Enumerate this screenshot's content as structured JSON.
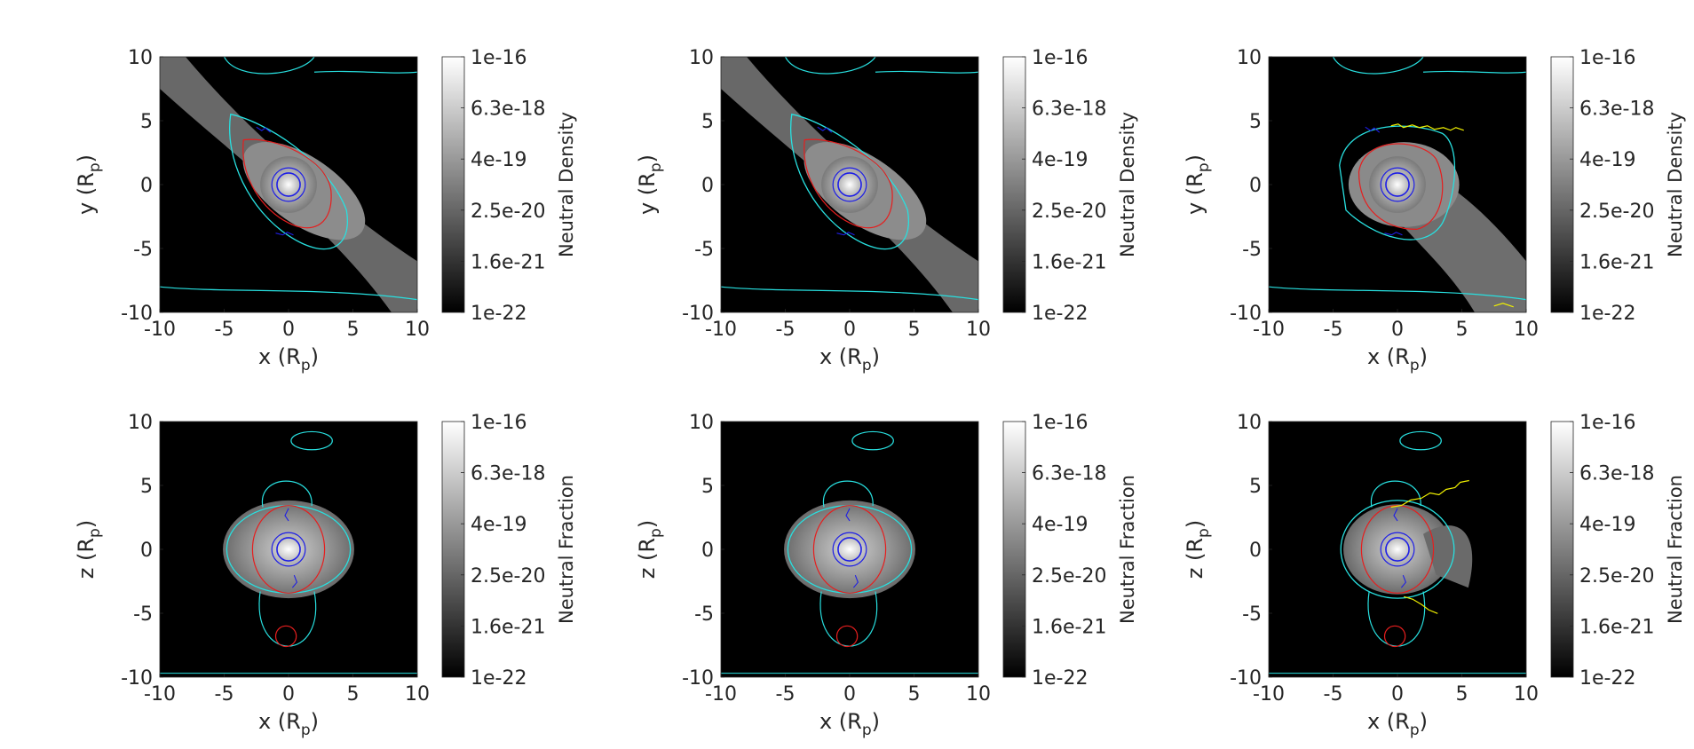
{
  "figure": {
    "panels": [
      {
        "ylabel": "y (R",
        "ysub": "p",
        "ylabel_end": ")",
        "xlabel": "x (R",
        "xsub": "p",
        "xlabel_end": ")",
        "cbar_label": "Neutral Density",
        "contour_colors": [
          "#1e1ee6",
          "#e61e1e",
          "#28e0e0"
        ]
      },
      {
        "ylabel": "y (R",
        "ysub": "p",
        "ylabel_end": ")",
        "xlabel": "x (R",
        "xsub": "p",
        "xlabel_end": ")",
        "cbar_label": "Neutral Density",
        "contour_colors": [
          "#1e1ee6",
          "#e61e1e",
          "#28e0e0"
        ]
      },
      {
        "ylabel": "y (R",
        "ysub": "p",
        "ylabel_end": ")",
        "xlabel": "x (R",
        "xsub": "p",
        "xlabel_end": ")",
        "cbar_label": "Neutral Density",
        "contour_colors": [
          "#1e1ee6",
          "#e61e1e",
          "#28e0e0",
          "#f0f000"
        ]
      },
      {
        "ylabel": "z (R",
        "ysub": "p",
        "ylabel_end": ")",
        "xlabel": "x (R",
        "xsub": "p",
        "xlabel_end": ")",
        "cbar_label": "Neutral Fraction",
        "contour_colors": [
          "#1e1ee6",
          "#e61e1e",
          "#28e0e0"
        ]
      },
      {
        "ylabel": "z (R",
        "ysub": "p",
        "ylabel_end": ")",
        "xlabel": "x (R",
        "xsub": "p",
        "xlabel_end": ")",
        "cbar_label": "Neutral Fraction",
        "contour_colors": [
          "#1e1ee6",
          "#e61e1e",
          "#28e0e0"
        ]
      },
      {
        "ylabel": "z (R",
        "ysub": "p",
        "ylabel_end": ")",
        "xlabel": "x (R",
        "xsub": "p",
        "xlabel_end": ")",
        "cbar_label": "Neutral Fraction",
        "contour_colors": [
          "#1e1ee6",
          "#e61e1e",
          "#28e0e0",
          "#f0f000"
        ]
      }
    ]
  },
  "chart_data": [
    {
      "type": "heatmap",
      "panel": 1,
      "xlabel": "x (Rp)",
      "ylabel": "y (Rp)",
      "xlim": [
        -10,
        10
      ],
      "ylim": [
        -10,
        10
      ],
      "xticks": [
        "-10",
        "-5",
        "0",
        "5",
        "10"
      ],
      "yticks": [
        "10",
        "5",
        "0",
        "-5",
        "-10"
      ],
      "colorbar": {
        "label": "Neutral Density",
        "scale": "log",
        "range": [
          1e-22,
          1e-16
        ],
        "ticks": [
          "1e-16",
          "6.3e-18",
          "4e-19",
          "2.5e-20",
          "1.6e-21",
          "1e-22"
        ]
      },
      "colormap": "gray"
    },
    {
      "type": "heatmap",
      "panel": 2,
      "xlabel": "x (Rp)",
      "ylabel": "y (Rp)",
      "xlim": [
        -10,
        10
      ],
      "ylim": [
        -10,
        10
      ],
      "xticks": [
        "-10",
        "-5",
        "0",
        "5",
        "10"
      ],
      "yticks": [
        "10",
        "5",
        "0",
        "-5",
        "-10"
      ],
      "colorbar": {
        "label": "Neutral Density",
        "scale": "log",
        "range": [
          1e-22,
          1e-16
        ],
        "ticks": [
          "1e-16",
          "6.3e-18",
          "4e-19",
          "2.5e-20",
          "1.6e-21",
          "1e-22"
        ]
      },
      "colormap": "gray"
    },
    {
      "type": "heatmap",
      "panel": 3,
      "xlabel": "x (Rp)",
      "ylabel": "y (Rp)",
      "xlim": [
        -10,
        10
      ],
      "ylim": [
        -10,
        10
      ],
      "xticks": [
        "-10",
        "-5",
        "0",
        "5",
        "10"
      ],
      "yticks": [
        "10",
        "5",
        "0",
        "-5",
        "-10"
      ],
      "colorbar": {
        "label": "Neutral Density",
        "scale": "log",
        "range": [
          1e-22,
          1e-16
        ],
        "ticks": [
          "1e-16",
          "6.3e-18",
          "4e-19",
          "2.5e-20",
          "1.6e-21",
          "1e-22"
        ]
      },
      "colormap": "gray"
    },
    {
      "type": "heatmap",
      "panel": 4,
      "xlabel": "x (Rp)",
      "ylabel": "z (Rp)",
      "xlim": [
        -10,
        10
      ],
      "ylim": [
        -10,
        10
      ],
      "xticks": [
        "-10",
        "-5",
        "0",
        "5",
        "10"
      ],
      "yticks": [
        "10",
        "5",
        "0",
        "-5",
        "-10"
      ],
      "colorbar": {
        "label": "Neutral Fraction",
        "scale": "log",
        "range": [
          1e-22,
          1e-16
        ],
        "ticks": [
          "1e-16",
          "6.3e-18",
          "4e-19",
          "2.5e-20",
          "1.6e-21",
          "1e-22"
        ]
      },
      "colormap": "gray"
    },
    {
      "type": "heatmap",
      "panel": 5,
      "xlabel": "x (Rp)",
      "ylabel": "z (Rp)",
      "xlim": [
        -10,
        10
      ],
      "ylim": [
        -10,
        10
      ],
      "xticks": [
        "-10",
        "-5",
        "0",
        "5",
        "10"
      ],
      "yticks": [
        "10",
        "5",
        "0",
        "-5",
        "-10"
      ],
      "colorbar": {
        "label": "Neutral Fraction",
        "scale": "log",
        "range": [
          1e-22,
          1e-16
        ],
        "ticks": [
          "1e-16",
          "6.3e-18",
          "4e-19",
          "2.5e-20",
          "1.6e-21",
          "1e-22"
        ]
      },
      "colormap": "gray"
    },
    {
      "type": "heatmap",
      "panel": 6,
      "xlabel": "x (Rp)",
      "ylabel": "z (Rp)",
      "xlim": [
        -10,
        10
      ],
      "ylim": [
        -10,
        10
      ],
      "xticks": [
        "-10",
        "-5",
        "0",
        "5",
        "10"
      ],
      "yticks": [
        "10",
        "5",
        "0",
        "-5",
        "-10"
      ],
      "colorbar": {
        "label": "Neutral Fraction",
        "scale": "log",
        "range": [
          1e-22,
          1e-16
        ],
        "ticks": [
          "1e-16",
          "6.3e-18",
          "4e-19",
          "2.5e-20",
          "1.6e-21",
          "1e-22"
        ]
      },
      "colormap": "gray"
    }
  ]
}
